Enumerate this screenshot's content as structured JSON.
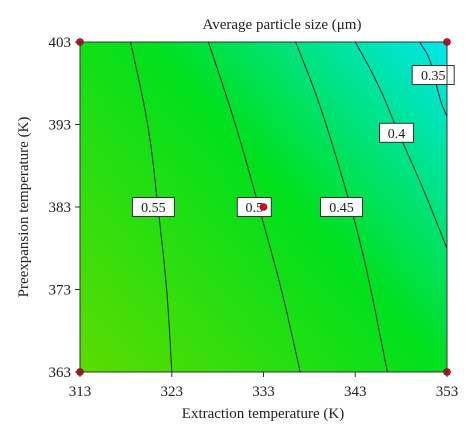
{
  "chart_data": {
    "type": "contour",
    "title": "Average particle size (μm)",
    "xlabel": "Extraction temperature (K)",
    "ylabel": "Preexpansion temperature (K)",
    "xlim": [
      313,
      353
    ],
    "ylim": [
      363,
      403
    ],
    "x_ticks": [
      "313",
      "323",
      "333",
      "343",
      "353"
    ],
    "y_ticks": [
      "363",
      "373",
      "383",
      "393",
      "403"
    ],
    "colormap": {
      "low": "#00e6ee",
      "mid": "#00e01c",
      "high": "#5cdc00"
    },
    "contours": [
      {
        "level": "0.55",
        "label_at": [
          321,
          383
        ],
        "points": [
          [
            318.5,
            403
          ],
          [
            320.5,
            393
          ],
          [
            321.5,
            383
          ],
          [
            322.5,
            373
          ],
          [
            323,
            363
          ]
        ]
      },
      {
        "level": "0.5",
        "label_at": [
          332,
          383
        ],
        "points": [
          [
            327,
            403
          ],
          [
            330,
            393
          ],
          [
            332.5,
            383
          ],
          [
            335,
            373
          ],
          [
            337,
            363
          ]
        ]
      },
      {
        "level": "0.45",
        "label_at": [
          341.5,
          383
        ],
        "points": [
          [
            336.5,
            403
          ],
          [
            339,
            396
          ],
          [
            341.5,
            387
          ],
          [
            344,
            377
          ],
          [
            346.5,
            363
          ]
        ]
      },
      {
        "level": "0.4",
        "label_at": [
          347.5,
          392
        ],
        "points": [
          [
            343,
            403
          ],
          [
            345.5,
            398
          ],
          [
            347.5,
            392.5
          ],
          [
            350.5,
            385
          ],
          [
            353,
            378
          ]
        ]
      },
      {
        "level": "0.35",
        "label_at": [
          351.5,
          399
        ],
        "points": [
          [
            350,
            403
          ],
          [
            351.2,
            401
          ],
          [
            352.2,
            396
          ],
          [
            353,
            394
          ]
        ]
      }
    ],
    "design_points": [
      [
        313,
        363
      ],
      [
        313,
        403
      ],
      [
        353,
        363
      ],
      [
        353,
        403
      ],
      [
        333,
        383
      ]
    ],
    "grid": false,
    "legend": "none"
  }
}
